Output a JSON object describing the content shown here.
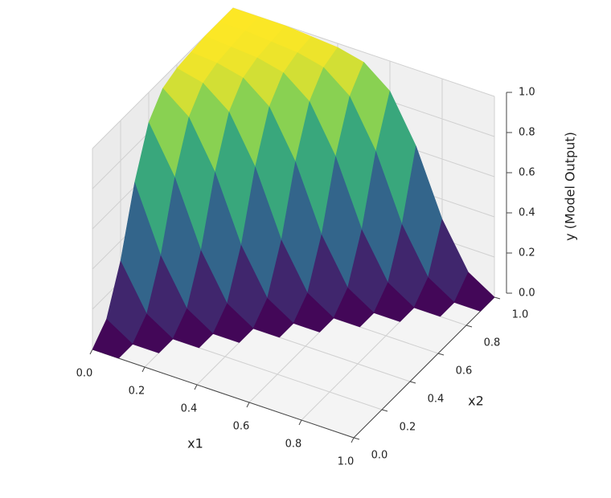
{
  "chart_data": {
    "type": "surface",
    "colormap": "viridis",
    "xlabel": "x1",
    "ylabel": "x2",
    "zlabel": "y (Model Output)",
    "x": [
      0,
      0.1,
      0.2,
      0.3,
      0.4,
      0.5,
      0.6,
      0.7,
      0.8,
      0.9,
      1
    ],
    "y": [
      0,
      0.1,
      0.2,
      0.3,
      0.4,
      0.5,
      0.6,
      0.7,
      0.8,
      0.9,
      1
    ],
    "z": [
      [
        0,
        0,
        null,
        null,
        null,
        null,
        null,
        null,
        null,
        null,
        null
      ],
      [
        0.08,
        0,
        0,
        null,
        null,
        null,
        null,
        null,
        null,
        null,
        null
      ],
      [
        0.3,
        0.08,
        0,
        0,
        null,
        null,
        null,
        null,
        null,
        null,
        null
      ],
      [
        0.62,
        0.3,
        0.08,
        0,
        0,
        null,
        null,
        null,
        null,
        null,
        null
      ],
      [
        0.85,
        0.62,
        0.3,
        0.08,
        0,
        0,
        null,
        null,
        null,
        null,
        null
      ],
      [
        0.95,
        0.85,
        0.62,
        0.3,
        0.08,
        0,
        0,
        null,
        null,
        null,
        null
      ],
      [
        0.98,
        0.95,
        0.85,
        0.62,
        0.3,
        0.08,
        0,
        0,
        null,
        null,
        null
      ],
      [
        0.99,
        0.98,
        0.95,
        0.85,
        0.62,
        0.3,
        0.08,
        0,
        0,
        null,
        null
      ],
      [
        1,
        0.99,
        0.98,
        0.95,
        0.85,
        0.62,
        0.3,
        0.08,
        0,
        0,
        null
      ],
      [
        1,
        1,
        0.99,
        0.98,
        0.95,
        0.85,
        0.62,
        0.3,
        0.08,
        0,
        0
      ],
      [
        1,
        1,
        1,
        0.99,
        0.98,
        0.95,
        0.85,
        0.62,
        0.3,
        0.08,
        0
      ]
    ],
    "xlim": [
      0,
      1
    ],
    "ylim": [
      0,
      1
    ],
    "zlim": [
      0,
      1
    ],
    "xticks": [
      {
        "value": 0,
        "label": "0.0"
      },
      0.2,
      0.4,
      0.6,
      0.8,
      {
        "value": 1,
        "label": "1.0"
      }
    ],
    "yticks": [
      {
        "value": 0,
        "label": "0.0"
      },
      0.2,
      0.4,
      0.6,
      0.8,
      {
        "value": 1,
        "label": "1.0"
      }
    ],
    "zticks": [
      {
        "value": 0,
        "label": "0.0"
      },
      0.2,
      0.4,
      0.6,
      0.8,
      {
        "value": 1,
        "label": "1.0"
      }
    ],
    "grid": true
  }
}
